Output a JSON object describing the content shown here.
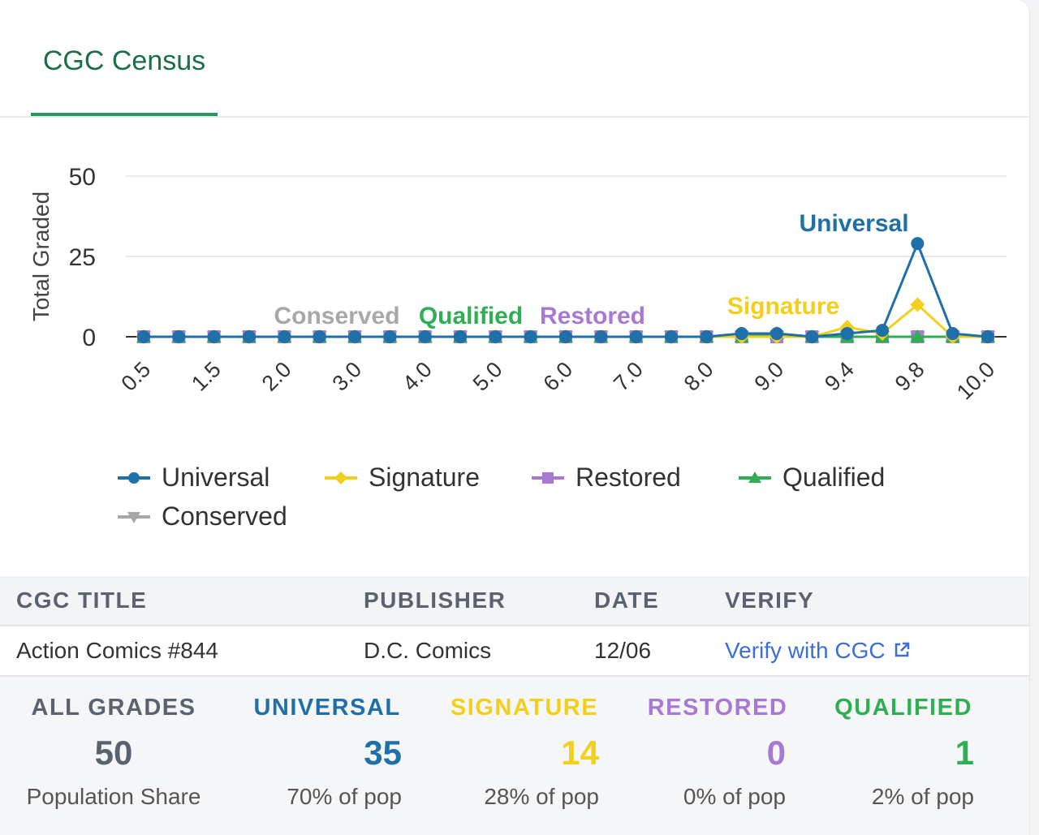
{
  "tabs": [
    {
      "label": "CGC Census",
      "active": true
    }
  ],
  "chart_data": {
    "type": "line",
    "ylabel": "Total Graded",
    "ylim": [
      0,
      50
    ],
    "yticks": [
      0,
      25,
      50
    ],
    "x": [
      "0.5",
      "1.0",
      "1.5",
      "1.8",
      "2.0",
      "2.5",
      "3.0",
      "3.5",
      "4.0",
      "4.5",
      "5.0",
      "5.5",
      "6.0",
      "6.5",
      "7.0",
      "7.5",
      "8.0",
      "8.5",
      "9.0",
      "9.2",
      "9.4",
      "9.6",
      "9.8",
      "9.9",
      "10.0"
    ],
    "xtick_labels_shown": [
      "0.5",
      "1.5",
      "2.0",
      "3.0",
      "4.0",
      "5.0",
      "6.0",
      "7.0",
      "8.0",
      "9.0",
      "9.4",
      "9.8",
      "10.0"
    ],
    "series": [
      {
        "name": "Universal",
        "color": "#1f6fa8",
        "marker": "circle",
        "values": [
          0,
          0,
          0,
          0,
          0,
          0,
          0,
          0,
          0,
          0,
          0,
          0,
          0,
          0,
          0,
          0,
          0,
          1,
          1,
          0,
          1,
          2,
          29,
          1,
          0
        ]
      },
      {
        "name": "Signature",
        "color": "#f2cf1d",
        "marker": "diamond",
        "values": [
          0,
          0,
          0,
          0,
          0,
          0,
          0,
          0,
          0,
          0,
          0,
          0,
          0,
          0,
          0,
          0,
          0,
          0,
          0,
          0,
          3,
          1,
          10,
          0,
          0
        ]
      },
      {
        "name": "Restored",
        "color": "#a779d3",
        "marker": "square",
        "values": [
          0,
          0,
          0,
          0,
          0,
          0,
          0,
          0,
          0,
          0,
          0,
          0,
          0,
          0,
          0,
          0,
          0,
          0,
          0,
          0,
          0,
          0,
          0,
          0,
          0
        ]
      },
      {
        "name": "Qualified",
        "color": "#2fae54",
        "marker": "triangle",
        "values": [
          0,
          0,
          0,
          0,
          0,
          0,
          0,
          0,
          0,
          0,
          0,
          0,
          0,
          0,
          0,
          0,
          0,
          0,
          1,
          0,
          0,
          0,
          0,
          0,
          0
        ]
      },
      {
        "name": "Conserved",
        "color": "#a8a8a8",
        "marker": "triangle-down",
        "values": [
          0,
          0,
          0,
          0,
          0,
          0,
          0,
          0,
          0,
          0,
          0,
          0,
          0,
          0,
          0,
          0,
          0,
          0,
          0,
          0,
          0,
          0,
          0,
          0,
          0
        ]
      }
    ],
    "annotations": [
      {
        "text": "Universal",
        "series": "Universal",
        "color": "#1f6fa8"
      },
      {
        "text": "Signature",
        "series": "Signature",
        "color": "#f2cf1d"
      },
      {
        "text": "Conserved",
        "series": "Conserved",
        "color": "#a8a8a8"
      },
      {
        "text": "Qualified",
        "series": "Qualified",
        "color": "#2fae54"
      },
      {
        "text": "Restored",
        "series": "Restored",
        "color": "#a779d3"
      }
    ],
    "legend": "bottom-left"
  },
  "table": {
    "headers": [
      "CGC TITLE",
      "PUBLISHER",
      "DATE",
      "VERIFY"
    ],
    "row": {
      "title": "Action Comics #844",
      "publisher": "D.C. Comics",
      "date": "12/06",
      "verify": "Verify with CGC"
    }
  },
  "stats": [
    {
      "label": "ALL GRADES",
      "value": "50",
      "sub": "Population Share",
      "color": "#5a6270",
      "value_color": "#5a6270"
    },
    {
      "label": "UNIVERSAL",
      "value": "35",
      "sub": "70% of pop",
      "color": "#1f6fa8",
      "value_color": "#1f6fa8"
    },
    {
      "label": "SIGNATURE",
      "value": "14",
      "sub": "28% of pop",
      "color": "#f2cf1d",
      "value_color": "#f2cf1d"
    },
    {
      "label": "RESTORED",
      "value": "0",
      "sub": "0% of pop",
      "color": "#a779d3",
      "value_color": "#a779d3"
    },
    {
      "label": "QUALIFIED",
      "value": "1",
      "sub": "2% of pop",
      "color": "#2fae54",
      "value_color": "#2fae54"
    }
  ]
}
